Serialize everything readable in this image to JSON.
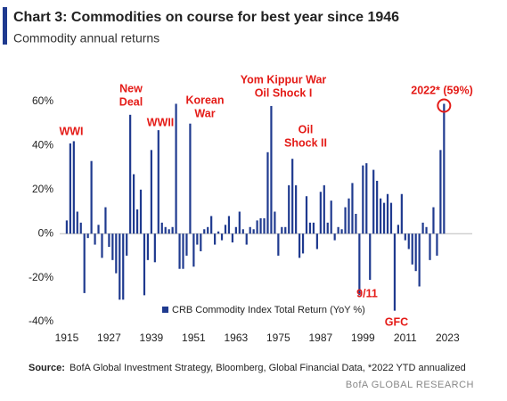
{
  "chart_data": {
    "type": "bar",
    "title": "Chart 3: Commodities on course for best year since 1946",
    "subtitle": "Commodity annual returns",
    "series": [
      {
        "name": "CRB Commodity Index Total Return (YoY %)",
        "color": "#1f3a8f",
        "values": [
          6,
          41,
          42,
          10,
          5,
          -27,
          -2,
          33,
          -5,
          4,
          -11,
          12,
          -6,
          -12,
          -18,
          -30,
          -30,
          -10,
          54,
          27,
          11,
          20,
          -28,
          -12,
          38,
          -13,
          47,
          5,
          3,
          2,
          3,
          59,
          -16,
          -16,
          -10,
          50,
          -15,
          -5,
          -8,
          2,
          3,
          8,
          -5,
          1,
          -3,
          4,
          8,
          -4,
          3,
          10,
          2,
          -5,
          3,
          2,
          6,
          7,
          7,
          37,
          58,
          10,
          -10,
          3,
          3,
          22,
          34,
          22,
          -11,
          -9,
          17,
          5,
          5,
          -7,
          19,
          22,
          5,
          15,
          -3,
          3,
          2,
          12,
          16,
          23,
          9,
          -28,
          31,
          32,
          -21,
          29,
          24,
          16,
          14,
          18,
          14,
          -35,
          4,
          18,
          -3,
          -7,
          -14,
          -17,
          -24,
          5,
          3,
          -12,
          12,
          -10,
          38,
          59
        ]
      }
    ],
    "x": [
      1915,
      1916,
      1917,
      1918,
      1919,
      1920,
      1921,
      1922,
      1923,
      1924,
      1925,
      1926,
      1927,
      1928,
      1929,
      1930,
      1931,
      1932,
      1933,
      1934,
      1935,
      1936,
      1937,
      1938,
      1939,
      1940,
      1941,
      1942,
      1943,
      1944,
      1945,
      1946,
      1947,
      1948,
      1949,
      1950,
      1951,
      1952,
      1953,
      1954,
      1955,
      1956,
      1957,
      1958,
      1959,
      1960,
      1961,
      1962,
      1963,
      1964,
      1965,
      1966,
      1967,
      1968,
      1969,
      1970,
      1971,
      1972,
      1973,
      1974,
      1975,
      1976,
      1977,
      1978,
      1979,
      1980,
      1981,
      1982,
      1983,
      1984,
      1985,
      1986,
      1987,
      1988,
      1989,
      1990,
      1991,
      1992,
      1993,
      1994,
      1995,
      1996,
      1997,
      1998,
      1999,
      2000,
      2001,
      2002,
      2003,
      2004,
      2005,
      2006,
      2007,
      2008,
      2009,
      2010,
      2011,
      2012,
      2013,
      2014,
      2015,
      2016,
      2017,
      2018,
      2019,
      2020,
      2021,
      2022
    ],
    "xlim": [
      1913,
      2030
    ],
    "xticks": [
      1915,
      1927,
      1939,
      1951,
      1963,
      1975,
      1987,
      1999,
      2011,
      2023
    ],
    "ylim": [
      -40,
      60
    ],
    "yticks": [
      {
        "value": -40,
        "label": "-40%"
      },
      {
        "value": -20,
        "label": "-20%"
      },
      {
        "value": 0,
        "label": "0%"
      },
      {
        "value": 20,
        "label": "20%"
      },
      {
        "value": 40,
        "label": "40%"
      },
      {
        "value": 60,
        "label": "60%"
      }
    ],
    "annotations": [
      [
        "WWI"
      ],
      [
        "New",
        "Deal"
      ],
      [
        "WWII"
      ],
      [
        "Korean",
        "War"
      ],
      [
        "Yom Kippur War",
        "Oil Shock I"
      ],
      [
        "Oil",
        "Shock II"
      ],
      [
        "9/11"
      ],
      [
        "GFC"
      ],
      [
        "2022* (59%)"
      ]
    ],
    "source_label": "Source:",
    "source": "BofA Global Investment Strategy, Bloomberg, Global Financial Data, *2022 YTD annualized",
    "credit": "BofA GLOBAL RESEARCH"
  }
}
